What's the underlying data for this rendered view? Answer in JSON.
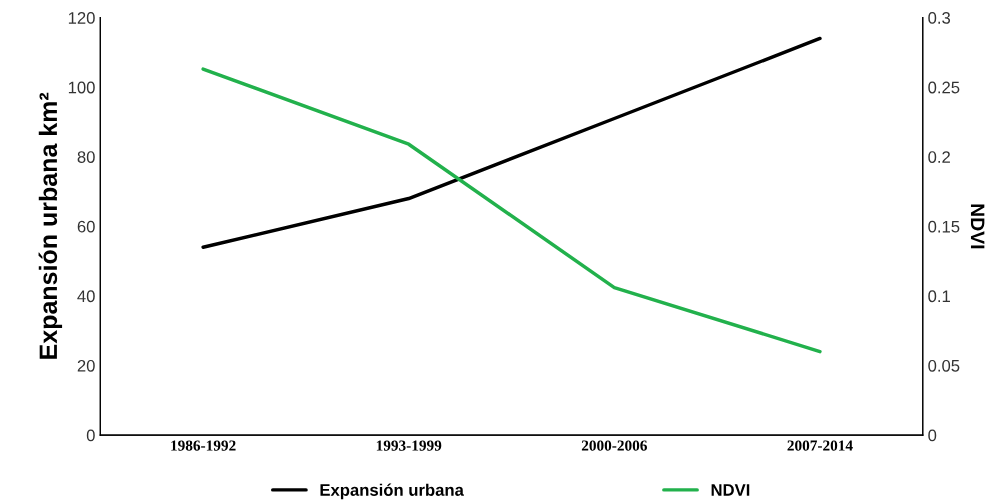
{
  "chart_data": {
    "type": "line",
    "categories": [
      "1986-1992",
      "1993-1999",
      "2000-2006",
      "2007-2014"
    ],
    "series": [
      {
        "name": "Expansión urbana",
        "color": "#000000",
        "values": [
          54,
          68,
          91,
          114
        ]
      },
      {
        "name": "NDVI",
        "color": "#22b14c",
        "values": [
          0.263,
          0.209,
          0.106,
          0.06
        ],
        "axis": "y2"
      }
    ],
    "ylabel": "Expansión urbana km²",
    "y2label": "NDVI",
    "ylim": [
      0,
      120
    ],
    "yticks": [
      0,
      20,
      40,
      60,
      80,
      100,
      120
    ],
    "y2lim": [
      0,
      0.3
    ],
    "y2ticks": [
      0,
      0.05,
      0.1,
      0.15,
      0.2,
      0.25,
      0.3
    ],
    "grid": false,
    "legend": "bottom",
    "marker": "none",
    "line_style": "solid"
  }
}
